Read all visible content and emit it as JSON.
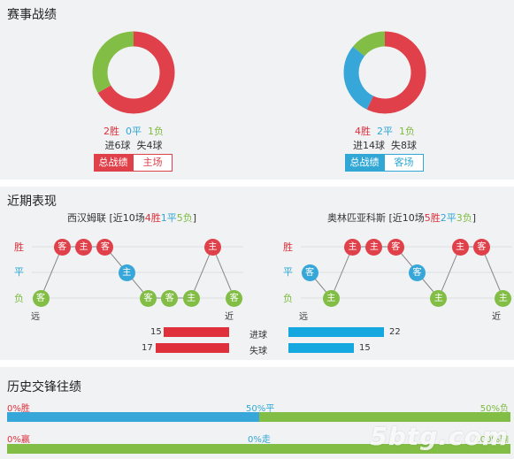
{
  "section1": {
    "title": "赛事战绩",
    "home": {
      "wins_text": "2胜",
      "draws_text": "0平",
      "losses_text": "1负",
      "goals_for_text": "进6球",
      "goals_against_text": "失4球",
      "wins": 2,
      "draws": 0,
      "losses": 1,
      "tabs": [
        "总战绩",
        "主场"
      ]
    },
    "away": {
      "wins_text": "4胜",
      "draws_text": "2平",
      "losses_text": "1负",
      "goals_for_text": "进14球",
      "goals_against_text": "失8球",
      "wins": 4,
      "draws": 2,
      "losses": 1,
      "tabs": [
        "总战绩",
        "客场"
      ]
    }
  },
  "section2": {
    "title": "近期表现",
    "row_labels": {
      "win": "胜",
      "draw": "平",
      "loss": "负"
    },
    "far_label": "远",
    "near_label": "近",
    "left_team": {
      "name": "西汉姆联",
      "pre": "[近10场",
      "w": "4胜",
      "d": "1平",
      "l": "5负",
      "post": "]",
      "results": [
        "L",
        "W",
        "W",
        "W",
        "D",
        "L",
        "L",
        "L",
        "W",
        "L"
      ],
      "venues": [
        "客",
        "客",
        "主",
        "客",
        "主",
        "客",
        "客",
        "主",
        "主",
        "客"
      ]
    },
    "right_team": {
      "name": "奥林匹亚科斯",
      "pre": "[近10场",
      "w": "5胜",
      "d": "2平",
      "l": "3负",
      "post": "]",
      "results": [
        "D",
        "L",
        "W",
        "W",
        "W",
        "D",
        "L",
        "W",
        "W",
        "L"
      ],
      "venues": [
        "客",
        "主",
        "主",
        "主",
        "客",
        "客",
        "主",
        "主",
        "客",
        "主"
      ]
    },
    "stats": [
      {
        "label": "进球",
        "left": "15",
        "right": "22",
        "left_val": 15,
        "right_val": 22
      },
      {
        "label": "失球",
        "left": "17",
        "right": "15",
        "left_val": 17,
        "right_val": 15
      }
    ]
  },
  "section3": {
    "title": "历史交锋往绩",
    "row1": {
      "left": "0%胜",
      "mid": "50%平",
      "right": "50%负",
      "draw_pct": 50,
      "loss_pct": 50
    },
    "row2": {
      "left": "0%赢",
      "mid": "0%走",
      "right": "100%输",
      "lose_pct": 100
    }
  },
  "colors": {
    "win": "#e0404a",
    "draw": "#37a7d9",
    "loss": "#82bd45",
    "panel": "#f1f2f4"
  },
  "watermark": "5btg.com"
}
